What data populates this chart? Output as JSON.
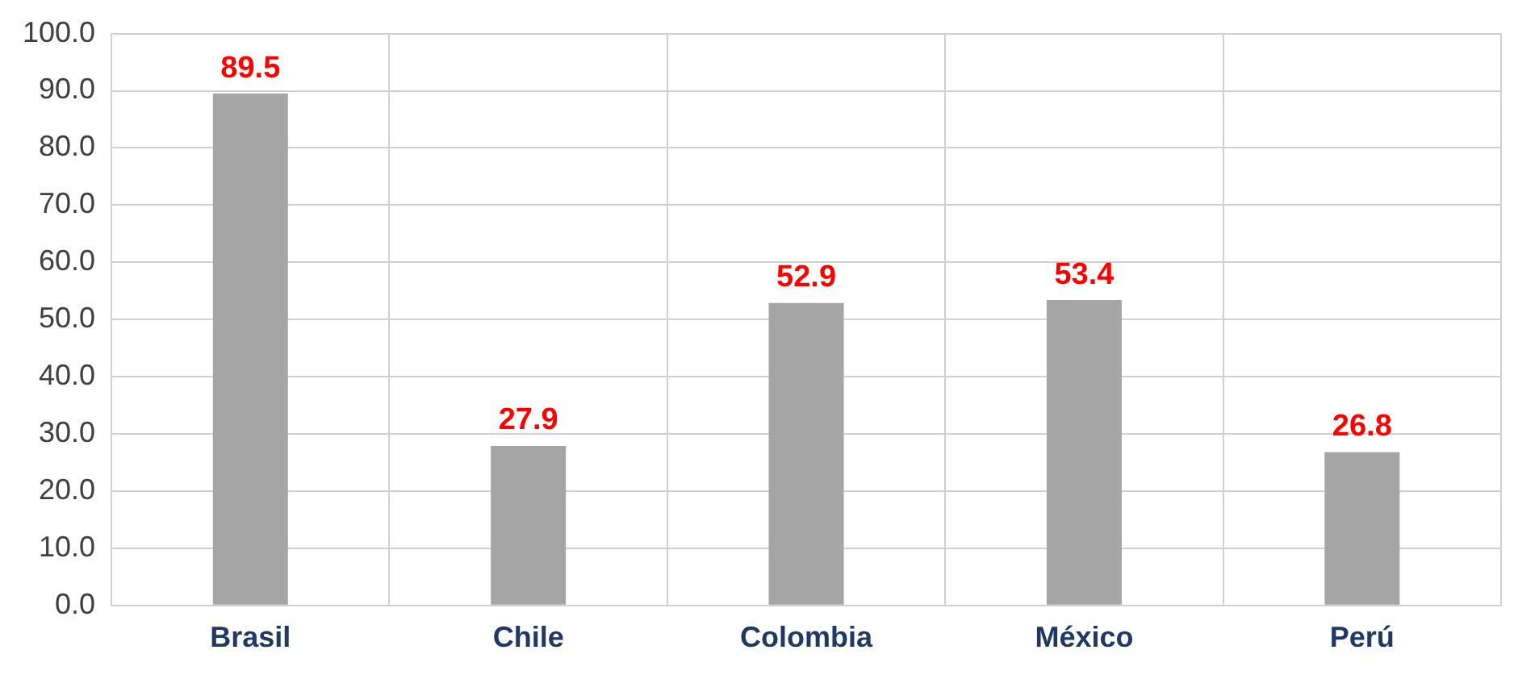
{
  "chart_data": {
    "type": "bar",
    "categories": [
      "Brasil",
      "Chile",
      "Colombia",
      "México",
      "Perú"
    ],
    "values": [
      89.5,
      27.9,
      52.9,
      53.4,
      26.8
    ],
    "color": "#a5a5a5",
    "ylim": [
      0,
      100
    ],
    "yticks": [
      {
        "value": 0,
        "label": "0.0"
      },
      {
        "value": 10,
        "label": "10.0"
      },
      {
        "value": 20,
        "label": "20.0"
      },
      {
        "value": 30,
        "label": "30.0"
      },
      {
        "value": 40,
        "label": "40.0"
      },
      {
        "value": 50,
        "label": "50.0"
      },
      {
        "value": 60,
        "label": "60.0"
      },
      {
        "value": 70,
        "label": "70.0"
      },
      {
        "value": 80,
        "label": "80.0"
      },
      {
        "value": 90,
        "label": "90.0"
      },
      {
        "value": 100,
        "label": "100.0"
      }
    ],
    "grid": true,
    "data_labels": true
  }
}
